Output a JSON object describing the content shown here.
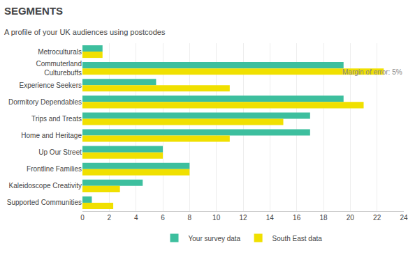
{
  "chart_data": {
    "type": "bar",
    "orientation": "horizontal",
    "title": "SEGMENTS",
    "subtitle": "A profile of your UK audiences using postcodes",
    "annotations": [
      "Margin of error: 5%"
    ],
    "categories": [
      "Metroculturals",
      "Commuterland\nCulturebuffs",
      "Experience Seekers",
      "Dormitory Dependables",
      "Trips and Treats",
      "Home and Heritage",
      "Up Our Street",
      "Frontline Families",
      "Kaleidoscope Creativity",
      "Supported Communities"
    ],
    "series": [
      {
        "name": "Your survey data",
        "color": "#3dbf9e",
        "values": [
          1.5,
          19.5,
          5.5,
          19.5,
          17.0,
          17.0,
          6.0,
          8.0,
          4.5,
          0.7
        ]
      },
      {
        "name": "South East data",
        "color": "#f0e000",
        "values": [
          1.5,
          22.5,
          11.0,
          21.0,
          15.0,
          11.0,
          6.0,
          8.0,
          2.8,
          2.3
        ]
      }
    ],
    "xlim": [
      0,
      24
    ],
    "xticks": [
      0,
      2,
      4,
      6,
      8,
      10,
      12,
      14,
      16,
      18,
      20,
      22,
      24
    ],
    "grid": true,
    "legend": "bottom"
  }
}
